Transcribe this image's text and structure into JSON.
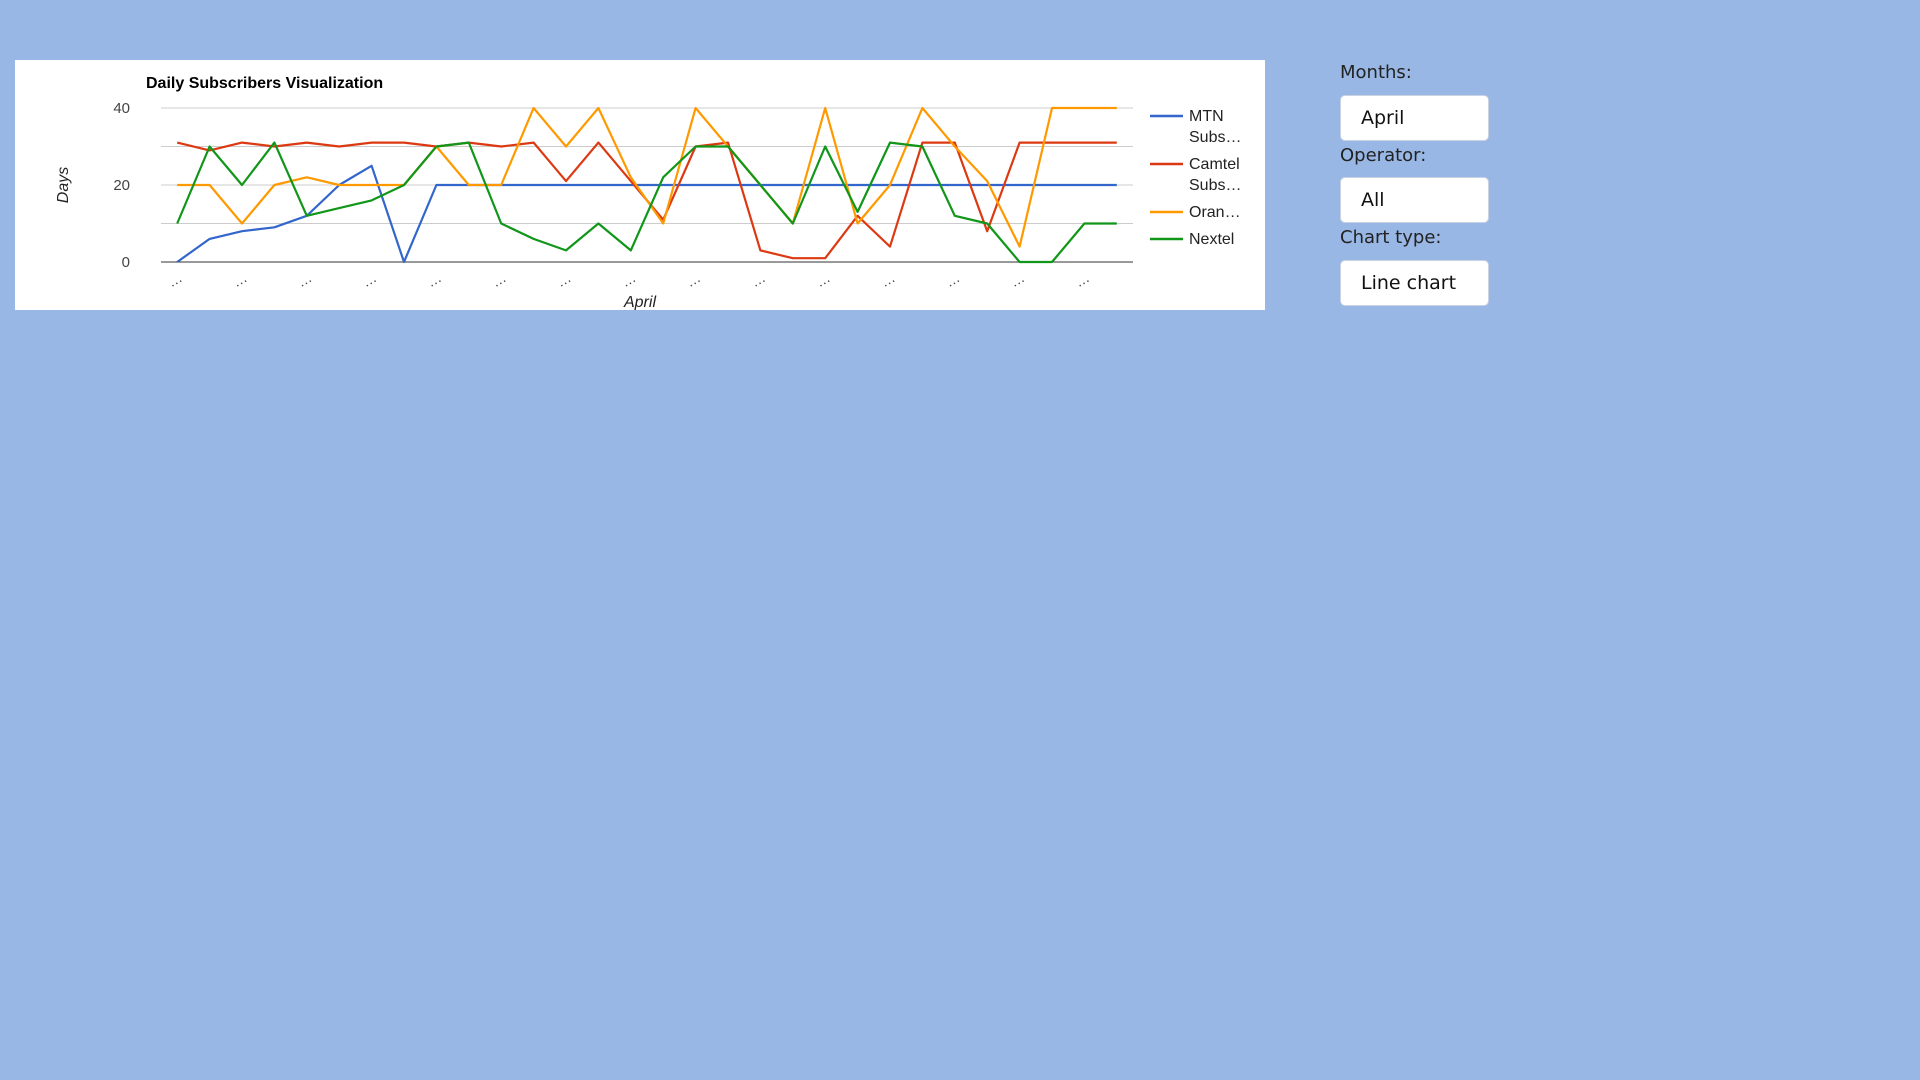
{
  "controls": {
    "months_label": "Months:",
    "months_value": "April",
    "operator_label": "Operator:",
    "operator_value": "All",
    "chart_type_label": "Chart type:",
    "chart_type_value": "Line chart"
  },
  "colors": {
    "background": "#98b7e4",
    "MTN": "#3366cc",
    "Camtel": "#dc3912",
    "Orange": "#ff9900",
    "Nextel": "#109618"
  },
  "chart_data": {
    "type": "line",
    "title": "Daily Subscribers Visualization",
    "xlabel": "April",
    "ylabel": "Days",
    "ylim": [
      0,
      40
    ],
    "yticks": [
      0,
      20,
      40
    ],
    "grid": true,
    "legend_position": "right",
    "x_tick_labels": [
      "…",
      "…",
      "…",
      "…",
      "…",
      "…",
      "…",
      "…",
      "…",
      "…",
      "…",
      "…",
      "…",
      "…",
      "…"
    ],
    "x": [
      1,
      2,
      3,
      4,
      5,
      6,
      7,
      8,
      9,
      10,
      11,
      12,
      13,
      14,
      15,
      16,
      17,
      18,
      19,
      20,
      21,
      22,
      23,
      24,
      25,
      26,
      27,
      28,
      29,
      30
    ],
    "series": [
      {
        "name": "MTN Subs…",
        "legend_lines": [
          "MTN",
          "Subs…"
        ],
        "color": "#3366cc",
        "values": [
          0,
          6,
          8,
          9,
          12,
          20,
          25,
          0,
          20,
          20,
          20,
          20,
          20,
          20,
          20,
          20,
          20,
          20,
          20,
          20,
          20,
          20,
          20,
          20,
          20,
          20,
          20,
          20,
          20,
          20
        ]
      },
      {
        "name": "Camtel Subs…",
        "legend_lines": [
          "Camtel",
          "Subs…"
        ],
        "color": "#dc3912",
        "values": [
          31,
          29,
          31,
          30,
          31,
          30,
          31,
          31,
          30,
          31,
          30,
          31,
          21,
          31,
          21,
          11,
          30,
          31,
          3,
          1,
          1,
          12,
          4,
          31,
          31,
          8,
          31,
          31,
          31,
          31
        ]
      },
      {
        "name": "Oran…",
        "legend_lines": [
          "Oran…"
        ],
        "color": "#ff9900",
        "values": [
          20,
          20,
          10,
          20,
          22,
          20,
          20,
          20,
          30,
          20,
          20,
          40,
          30,
          40,
          22,
          10,
          40,
          30,
          20,
          10,
          40,
          10,
          20,
          40,
          30,
          21,
          4,
          40,
          40,
          40
        ]
      },
      {
        "name": "Nextel",
        "legend_lines": [
          "Nextel"
        ],
        "color": "#109618",
        "values": [
          10,
          30,
          20,
          31,
          12,
          14,
          16,
          20,
          30,
          31,
          10,
          6,
          3,
          10,
          3,
          22,
          30,
          30,
          20,
          10,
          30,
          13,
          31,
          30,
          12,
          10,
          0,
          0,
          10,
          10
        ]
      }
    ]
  }
}
